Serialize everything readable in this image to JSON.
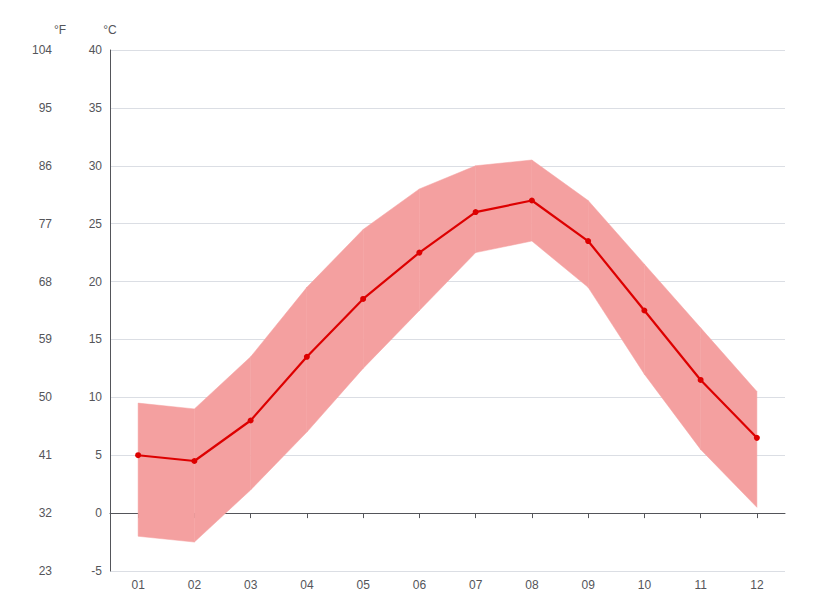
{
  "chart_data": {
    "type": "line",
    "x": [
      1,
      2,
      3,
      4,
      5,
      6,
      7,
      8,
      9,
      10,
      11,
      12
    ],
    "xlim": [
      0.5,
      12.5
    ],
    "xticks": [
      {
        "value": 1,
        "label": "01"
      },
      {
        "value": 2,
        "label": "02"
      },
      {
        "value": 3,
        "label": "03"
      },
      {
        "value": 4,
        "label": "04"
      },
      {
        "value": 5,
        "label": "05"
      },
      {
        "value": 6,
        "label": "06"
      },
      {
        "value": 7,
        "label": "07"
      },
      {
        "value": 8,
        "label": "08"
      },
      {
        "value": 9,
        "label": "09"
      },
      {
        "value": 10,
        "label": "10"
      },
      {
        "value": 11,
        "label": "11"
      },
      {
        "value": 12,
        "label": "12"
      }
    ],
    "ylabel": "°C",
    "ylim": [
      -5,
      40
    ],
    "yticks": [
      -5,
      0,
      5,
      10,
      15,
      20,
      25,
      30,
      35,
      40
    ],
    "y2label": "°F",
    "y2lim": [
      23,
      104
    ],
    "y2ticks": [
      23,
      32,
      41,
      50,
      59,
      68,
      77,
      86,
      95,
      104
    ],
    "grid": true,
    "series": [
      {
        "type": "band",
        "color": "#f4a0a0",
        "low": [
          -2.0,
          -2.5,
          2.0,
          7.0,
          12.5,
          17.5,
          22.5,
          23.5,
          19.5,
          12.0,
          5.5,
          0.5
        ],
        "high": [
          9.5,
          9.0,
          13.5,
          19.5,
          24.5,
          28.0,
          30.0,
          30.5,
          27.0,
          21.5,
          16.0,
          10.5
        ]
      },
      {
        "type": "line",
        "color": "#dd0000",
        "marker": "circle",
        "values": [
          5.0,
          4.5,
          8.0,
          13.5,
          18.5,
          22.5,
          26.0,
          27.0,
          23.5,
          17.5,
          11.5,
          6.5
        ]
      }
    ]
  }
}
